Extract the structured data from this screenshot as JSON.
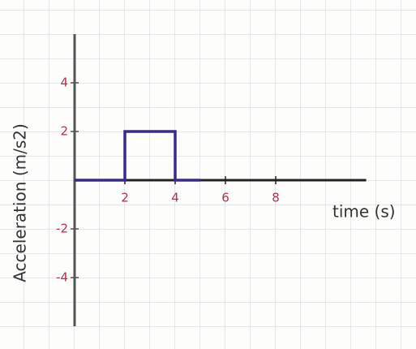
{
  "chart_data": {
    "type": "line",
    "y_label": "Acceleration (m/s2)",
    "x_label": "time (s)",
    "x": [
      0,
      2,
      2,
      4,
      4,
      5
    ],
    "series": [
      {
        "color": "#3b2a8a",
        "values": [
          0,
          0,
          2,
          2,
          0,
          0
        ]
      }
    ],
    "xlim": [
      0,
      11.6
    ],
    "ylim": [
      -6,
      6
    ],
    "xticks": [
      2,
      4,
      6,
      8
    ],
    "yticks": [
      4,
      2,
      -2,
      -4
    ]
  }
}
